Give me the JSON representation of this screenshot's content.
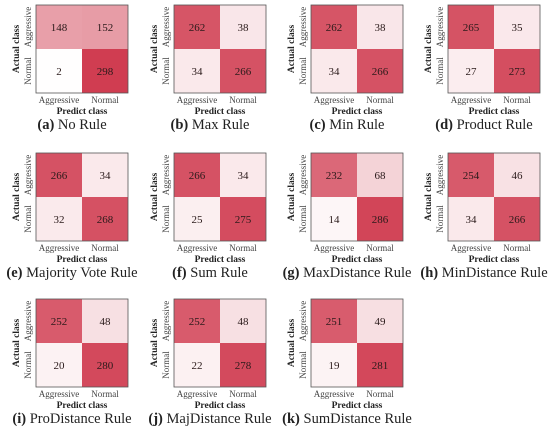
{
  "chart_data": [
    {
      "type": "heatmap",
      "caption_label": "(a)",
      "caption_text": " No Rule",
      "xlabel": "Predict class",
      "ylabel": "Actual class",
      "x_categories": [
        "Aggressive",
        "Normal"
      ],
      "y_categories": [
        "Aggressive",
        "Normal"
      ],
      "values": [
        [
          148,
          152
        ],
        [
          2,
          298
        ]
      ]
    },
    {
      "type": "heatmap",
      "caption_label": "(b)",
      "caption_text": " Max Rule",
      "xlabel": "Predict class",
      "ylabel": "Actual class",
      "x_categories": [
        "Aggressive",
        "Normal"
      ],
      "y_categories": [
        "Aggressive",
        "Normal"
      ],
      "values": [
        [
          262,
          38
        ],
        [
          34,
          266
        ]
      ]
    },
    {
      "type": "heatmap",
      "caption_label": "(c)",
      "caption_text": " Min Rule",
      "xlabel": "Predict class",
      "ylabel": "Actual class",
      "x_categories": [
        "Aggressive",
        "Normal"
      ],
      "y_categories": [
        "Aggressive",
        "Normal"
      ],
      "values": [
        [
          262,
          38
        ],
        [
          34,
          266
        ]
      ]
    },
    {
      "type": "heatmap",
      "caption_label": "(d)",
      "caption_text": " Product Rule",
      "xlabel": "Predict class",
      "ylabel": "Actual class",
      "x_categories": [
        "Aggressive",
        "Normal"
      ],
      "y_categories": [
        "Aggressive",
        "Normal"
      ],
      "values": [
        [
          265,
          35
        ],
        [
          27,
          273
        ]
      ]
    },
    {
      "type": "heatmap",
      "caption_label": "(e)",
      "caption_text": " Majority Vote Rule",
      "xlabel": "Predict class",
      "ylabel": "Actual class",
      "x_categories": [
        "Aggressive",
        "Normal"
      ],
      "y_categories": [
        "Aggressive",
        "Normal"
      ],
      "values": [
        [
          266,
          34
        ],
        [
          32,
          268
        ]
      ]
    },
    {
      "type": "heatmap",
      "caption_label": "(f)",
      "caption_text": " Sum Rule",
      "xlabel": "Predict class",
      "ylabel": "Actual class",
      "x_categories": [
        "Aggressive",
        "Normal"
      ],
      "y_categories": [
        "Aggressive",
        "Normal"
      ],
      "values": [
        [
          266,
          34
        ],
        [
          25,
          275
        ]
      ]
    },
    {
      "type": "heatmap",
      "caption_label": "(g)",
      "caption_text": " MaxDistance Rule",
      "xlabel": "Predict class",
      "ylabel": "Actual class",
      "x_categories": [
        "Aggressive",
        "Normal"
      ],
      "y_categories": [
        "Aggressive",
        "Normal"
      ],
      "values": [
        [
          232,
          68
        ],
        [
          14,
          286
        ]
      ]
    },
    {
      "type": "heatmap",
      "caption_label": "(h)",
      "caption_text": " MinDistance Rule",
      "xlabel": "Predict class",
      "ylabel": "Actual class",
      "x_categories": [
        "Aggressive",
        "Normal"
      ],
      "y_categories": [
        "Aggressive",
        "Normal"
      ],
      "values": [
        [
          254,
          46
        ],
        [
          34,
          266
        ]
      ]
    },
    {
      "type": "heatmap",
      "caption_label": "(i)",
      "caption_text": " ProDistance Rule",
      "xlabel": "Predict class",
      "ylabel": "Actual class",
      "x_categories": [
        "Aggressive",
        "Normal"
      ],
      "y_categories": [
        "Aggressive",
        "Normal"
      ],
      "values": [
        [
          252,
          48
        ],
        [
          20,
          280
        ]
      ]
    },
    {
      "type": "heatmap",
      "caption_label": "(j)",
      "caption_text": " MajDistance Rule",
      "xlabel": "Predict class",
      "ylabel": "Actual class",
      "x_categories": [
        "Aggressive",
        "Normal"
      ],
      "y_categories": [
        "Aggressive",
        "Normal"
      ],
      "values": [
        [
          252,
          48
        ],
        [
          22,
          278
        ]
      ]
    },
    {
      "type": "heatmap",
      "caption_label": "(k)",
      "caption_text": " SumDistance Rule",
      "xlabel": "Predict class",
      "ylabel": "Actual class",
      "x_categories": [
        "Aggressive",
        "Normal"
      ],
      "y_categories": [
        "Aggressive",
        "Normal"
      ],
      "values": [
        [
          251,
          49
        ],
        [
          19,
          281
        ]
      ]
    }
  ],
  "colors": {
    "low": "#ffffff",
    "high": "#d03c50"
  },
  "color_range": [
    0,
    300
  ]
}
